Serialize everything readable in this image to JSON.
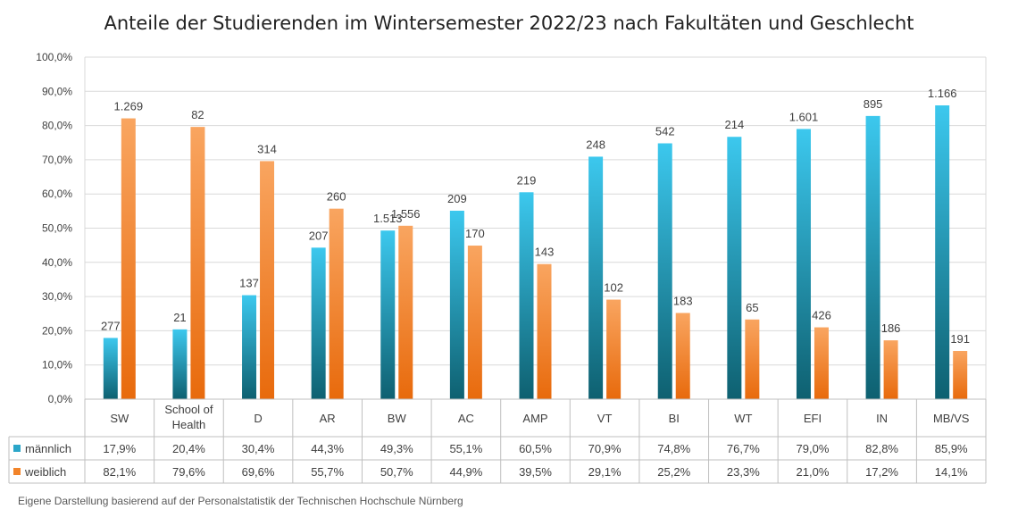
{
  "chart_data": {
    "type": "bar",
    "title": "Anteile der Studierenden im Wintersemester 2022/23 nach Fakultäten und Geschlecht",
    "ylim": [
      0,
      100
    ],
    "yticks": [
      "0,0%",
      "10,0%",
      "20,0%",
      "30,0%",
      "40,0%",
      "50,0%",
      "60,0%",
      "70,0%",
      "80,0%",
      "90,0%",
      "100,0%"
    ],
    "grid": true,
    "legend_placement": "data-table",
    "categories": [
      [
        "SW"
      ],
      [
        "School of",
        "Health"
      ],
      [
        "D"
      ],
      [
        "AR"
      ],
      [
        "BW"
      ],
      [
        "AC"
      ],
      [
        "AMP"
      ],
      [
        "VT"
      ],
      [
        "BI"
      ],
      [
        "WT"
      ],
      [
        "EFI"
      ],
      [
        "IN"
      ],
      [
        "MB/VS"
      ]
    ],
    "series": [
      {
        "name": "männlich",
        "color": "#2BA6C9",
        "values": [
          17.9,
          20.4,
          30.4,
          44.3,
          49.3,
          55.1,
          60.5,
          70.9,
          74.8,
          76.7,
          79.0,
          82.8,
          85.9
        ],
        "table_values": [
          "17,9%",
          "20,4%",
          "30,4%",
          "44,3%",
          "49,3%",
          "55,1%",
          "60,5%",
          "70,9%",
          "74,8%",
          "76,7%",
          "79,0%",
          "82,8%",
          "85,9%"
        ],
        "count_labels": [
          "277",
          "21",
          "137",
          "207",
          "1.513",
          "209",
          "219",
          "248",
          "542",
          "214",
          "1.601",
          "895",
          "1.166"
        ]
      },
      {
        "name": "weiblich",
        "color": "#F2842A",
        "values": [
          82.1,
          79.6,
          69.6,
          55.7,
          50.7,
          44.9,
          39.5,
          29.1,
          25.2,
          23.3,
          21.0,
          17.2,
          14.1
        ],
        "table_values": [
          "82,1%",
          "79,6%",
          "69,6%",
          "55,7%",
          "50,7%",
          "44,9%",
          "39,5%",
          "29,1%",
          "25,2%",
          "23,3%",
          "21,0%",
          "17,2%",
          "14,1%"
        ],
        "count_labels": [
          "1.269",
          "82",
          "314",
          "260",
          "1.556",
          "170",
          "143",
          "102",
          "183",
          "65",
          "426",
          "186",
          "191"
        ]
      }
    ]
  },
  "source_note": "Eigene Darstellung basierend auf der Personalstatistik der Technischen Hochschule Nürnberg"
}
